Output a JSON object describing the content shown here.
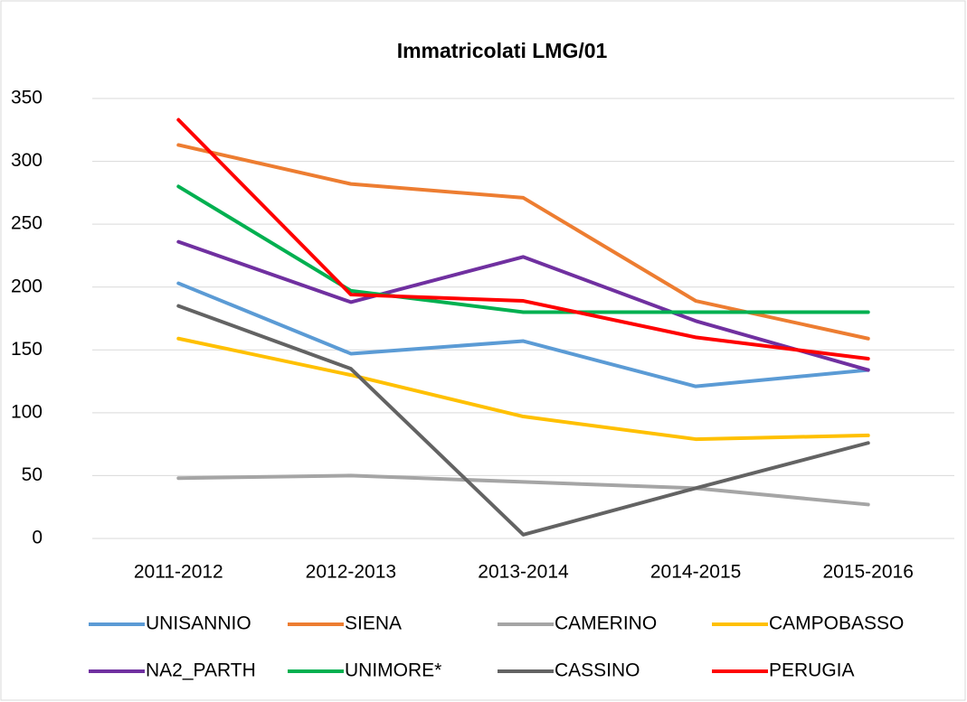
{
  "chart_data": {
    "type": "line",
    "title": "Immatricolati LMG/01",
    "categories": [
      "2011-2012",
      "2012-2013",
      "2013-2014",
      "2014-2015",
      "2015-2016"
    ],
    "series": [
      {
        "name": "UNISANNIO",
        "color": "#5b9bd5",
        "values": [
          203,
          147,
          157,
          121,
          134
        ]
      },
      {
        "name": "SIENA",
        "color": "#ed7d31",
        "values": [
          313,
          282,
          271,
          189,
          159
        ]
      },
      {
        "name": "CAMERINO",
        "color": "#a5a5a5",
        "values": [
          48,
          50,
          45,
          40,
          27
        ]
      },
      {
        "name": "CAMPOBASSO",
        "color": "#ffc000",
        "values": [
          159,
          130,
          97,
          79,
          82
        ]
      },
      {
        "name": "NA2_PARTH",
        "color": "#7030a0",
        "values": [
          236,
          188,
          224,
          173,
          134
        ]
      },
      {
        "name": "UNIMORE*",
        "color": "#00b050",
        "values": [
          280,
          197,
          180,
          180,
          180
        ]
      },
      {
        "name": "CASSINO",
        "color": "#636363",
        "values": [
          185,
          135,
          3,
          40,
          76
        ]
      },
      {
        "name": "PERUGIA",
        "color": "#ff0000",
        "values": [
          333,
          194,
          189,
          160,
          143
        ]
      }
    ],
    "ylim": [
      0,
      350
    ],
    "yticks": [
      0,
      50,
      100,
      150,
      200,
      250,
      300,
      350
    ],
    "grid": true,
    "legend": "bottom"
  }
}
